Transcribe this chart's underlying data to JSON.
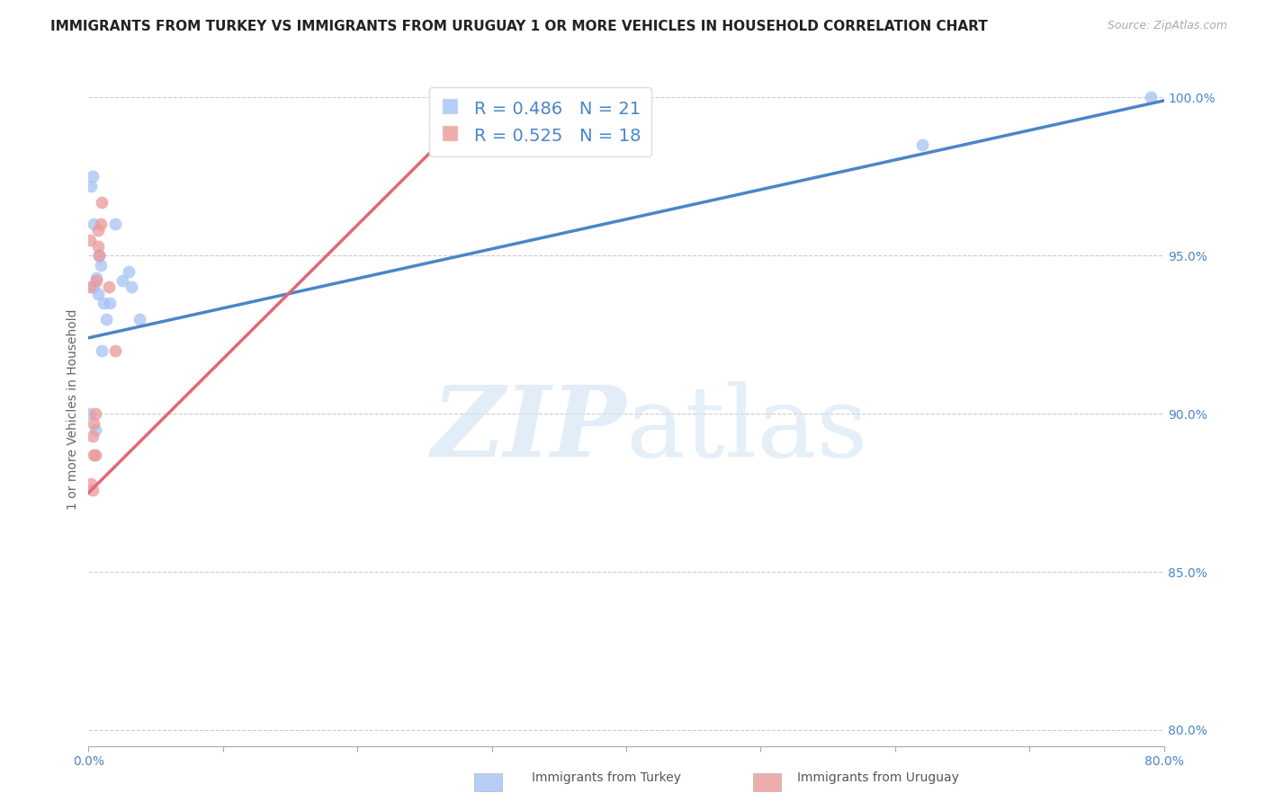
{
  "title": "IMMIGRANTS FROM TURKEY VS IMMIGRANTS FROM URUGUAY 1 OR MORE VEHICLES IN HOUSEHOLD CORRELATION CHART",
  "source": "Source: ZipAtlas.com",
  "ylabel": "1 or more Vehicles in Household",
  "xlim": [
    0.0,
    0.8
  ],
  "ylim": [
    0.795,
    1.008
  ],
  "xticks": [
    0.0,
    0.1,
    0.2,
    0.3,
    0.4,
    0.5,
    0.6,
    0.7,
    0.8
  ],
  "xticklabels": [
    "0.0%",
    "",
    "",
    "",
    "",
    "",
    "",
    "",
    "80.0%"
  ],
  "yticks": [
    0.8,
    0.85,
    0.9,
    0.95,
    1.0
  ],
  "yright_labels": [
    "80.0%",
    "85.0%",
    "90.0%",
    "95.0%",
    "100.0%"
  ],
  "turkey_R": 0.486,
  "turkey_N": 21,
  "uruguay_R": 0.525,
  "uruguay_N": 18,
  "turkey_color": "#a4c2f4",
  "uruguay_color": "#ea9999",
  "turkey_line_color": "#4a86c8",
  "uruguay_line_color": "#e06878",
  "turkey_x": [
    0.001,
    0.002,
    0.003,
    0.004,
    0.004,
    0.005,
    0.006,
    0.007,
    0.008,
    0.009,
    0.01,
    0.011,
    0.013,
    0.016,
    0.02,
    0.025,
    0.03,
    0.032,
    0.038,
    0.62,
    0.79
  ],
  "turkey_y": [
    0.9,
    0.972,
    0.975,
    0.94,
    0.96,
    0.895,
    0.943,
    0.938,
    0.95,
    0.947,
    0.92,
    0.935,
    0.93,
    0.935,
    0.96,
    0.942,
    0.945,
    0.94,
    0.93,
    0.985,
    1.0
  ],
  "uruguay_x": [
    0.001,
    0.001,
    0.002,
    0.003,
    0.003,
    0.004,
    0.004,
    0.005,
    0.005,
    0.006,
    0.007,
    0.007,
    0.008,
    0.009,
    0.01,
    0.015,
    0.02,
    0.3
  ],
  "uruguay_y": [
    0.94,
    0.955,
    0.878,
    0.876,
    0.893,
    0.887,
    0.897,
    0.887,
    0.9,
    0.942,
    0.953,
    0.958,
    0.95,
    0.96,
    0.967,
    0.94,
    0.92,
    1.0
  ],
  "background_color": "#ffffff",
  "grid_color": "#cccccc",
  "title_fontsize": 11,
  "axis_label_fontsize": 10,
  "tick_fontsize": 10,
  "marker_size": 100,
  "turkey_line_x": [
    0.0,
    0.8
  ],
  "turkey_line_y": [
    0.924,
    0.999
  ],
  "uruguay_line_x": [
    0.0,
    0.3
  ],
  "uruguay_line_y": [
    0.875,
    1.002
  ]
}
